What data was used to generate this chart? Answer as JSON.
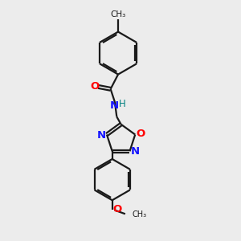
{
  "background_color": "#ececec",
  "bond_color": "#1a1a1a",
  "nitrogen_color": "#1414ff",
  "oxygen_color": "#ff0000",
  "teal_color": "#008080",
  "line_width": 1.6,
  "fig_size": [
    3.0,
    3.0
  ],
  "dpi": 100,
  "xlim": [
    0,
    10
  ],
  "ylim": [
    0,
    10
  ]
}
